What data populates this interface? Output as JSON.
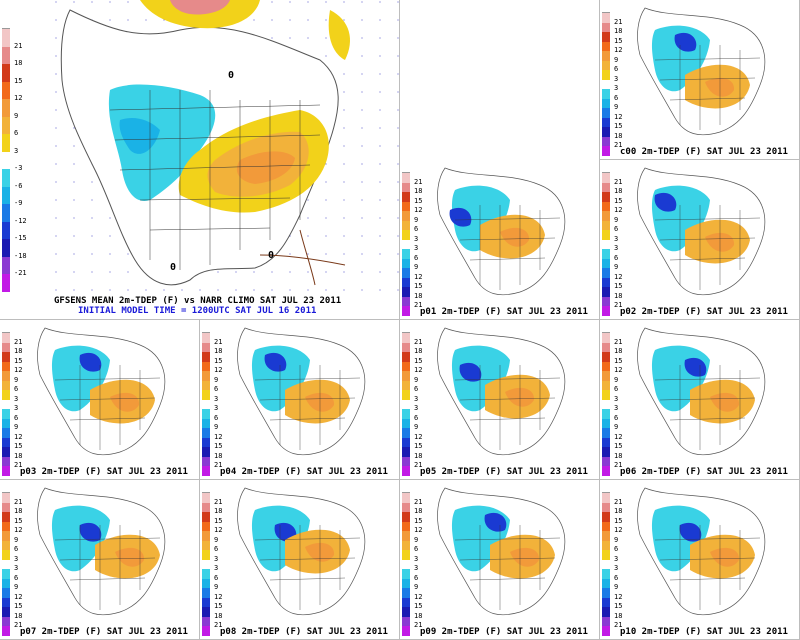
{
  "colorbar": {
    "labels": [
      "21",
      "18",
      "15",
      "12",
      "9",
      "6",
      "3",
      "-3",
      "-6",
      "-9",
      "-12",
      "-15",
      "-18",
      "-21"
    ],
    "small_labels": [
      "21",
      "18",
      "15",
      "12",
      "9",
      "6",
      "3",
      "3",
      "6",
      "9",
      "12",
      "15",
      "18",
      "21"
    ],
    "colors": [
      "#f2c6c6",
      "#e68a8a",
      "#d23a1a",
      "#f26a1a",
      "#f29a3a",
      "#f2b23a",
      "#f2d21a",
      "#ffffff",
      "#3ad2e6",
      "#1ab2e6",
      "#1a7ae6",
      "#1a3ad2",
      "#1a1ab2",
      "#8a3ad2",
      "#c21ae6"
    ]
  },
  "main": {
    "title": "GFSENS MEAN 2m-TDEP (F) vs NARR CLIMO SAT JUL 23 2011",
    "subtitle": "INITIAL MODEL TIME = 1200UTC SAT JUL 16 2011",
    "zero_label": "0"
  },
  "members": [
    {
      "id": "c00",
      "title": "c00 2m-TDEP (F) SAT JUL 23 2011"
    },
    {
      "id": "p01",
      "title": "p01 2m-TDEP (F) SAT JUL 23 2011"
    },
    {
      "id": "p02",
      "title": "p02 2m-TDEP (F) SAT JUL 23 2011"
    },
    {
      "id": "p03",
      "title": "p03 2m-TDEP (F) SAT JUL 23 2011"
    },
    {
      "id": "p04",
      "title": "p04 2m-TDEP (F) SAT JUL 23 2011"
    },
    {
      "id": "p05",
      "title": "p05 2m-TDEP (F) SAT JUL 23 2011"
    },
    {
      "id": "p06",
      "title": "p06 2m-TDEP (F) SAT JUL 23 2011"
    },
    {
      "id": "p07",
      "title": "p07 2m-TDEP (F) SAT JUL 23 2011"
    },
    {
      "id": "p08",
      "title": "p08 2m-TDEP (F) SAT JUL 23 2011"
    },
    {
      "id": "p09",
      "title": "p09 2m-TDEP (F) SAT JUL 23 2011"
    },
    {
      "id": "p10",
      "title": "p10 2m-TDEP (F) SAT JUL 23 2011"
    }
  ]
}
